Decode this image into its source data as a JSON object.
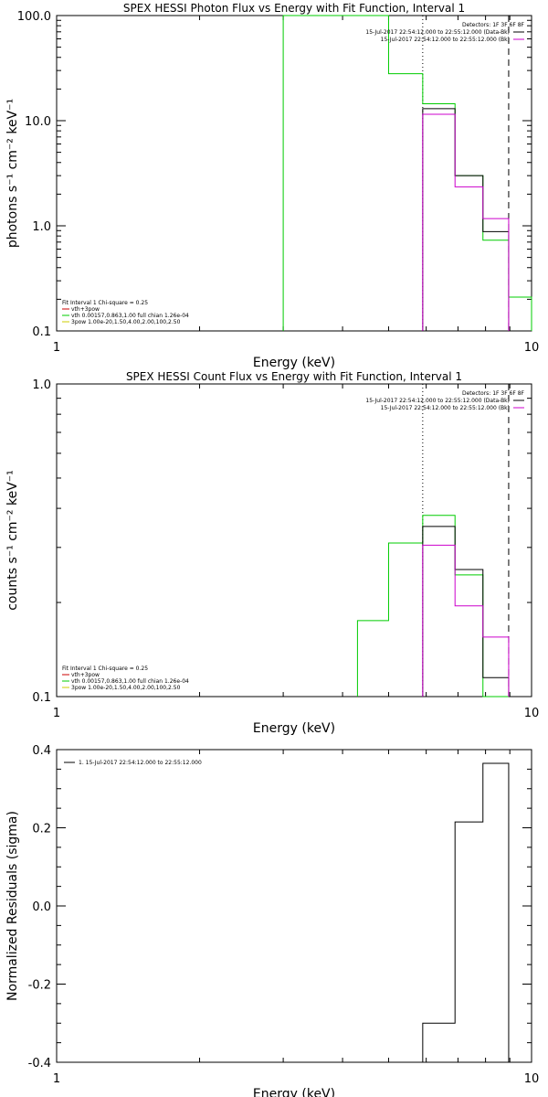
{
  "chart_data": [
    {
      "type": "line",
      "title": "SPEX HESSI Photon Flux vs Energy with Fit Function, Interval 1",
      "xlabel": "Energy (keV)",
      "ylabel": "photons s⁻¹ cm⁻² keV⁻¹",
      "xscale": "log",
      "yscale": "log",
      "xlim": [
        1,
        10
      ],
      "ylim": [
        0.1,
        100
      ],
      "xticks": [
        "1",
        "10"
      ],
      "yticks": [
        "100.0",
        "10.0",
        "1.0",
        "0.1"
      ],
      "vlines": [
        {
          "x": 5.9,
          "style": "dotted"
        },
        {
          "x": 8.95,
          "style": "dashed"
        }
      ],
      "legend_top_right": [
        {
          "text": "Detectors: 1F 3F 6F 8F",
          "color": ""
        },
        {
          "text": "15-Jul-2017 22:54:12.000 to 22:55:12.000 (Data-Bk)",
          "color": "#000000"
        },
        {
          "text": "15-Jul-2017 22:54:12.000 to 22:55:12.000 (Bk)",
          "color": "#cc00cc"
        }
      ],
      "legend_bottom_left": [
        {
          "text": "Fit Interval 1    Chi-square = 0.25",
          "color": ""
        },
        {
          "text": "vth+3pow",
          "color": "#cc0000"
        },
        {
          "text": "vth 0.00157,0.863,1.00   full chian 1.26e-04",
          "color": "#00cc00"
        },
        {
          "text": "3pow 1.00e-20,1.50,4.00,2.00,100,2.50",
          "color": "#cccc00"
        }
      ],
      "series": [
        {
          "color": "#00cc00",
          "edges": [
            3.0,
            5.0,
            5.9,
            6.9,
            7.9,
            8.95,
            10.0
          ],
          "values": [
            100,
            28,
            14.5,
            3.0,
            0.73,
            0.21
          ]
        },
        {
          "color": "#000000",
          "edges": [
            5.9,
            6.9,
            7.9,
            8.95
          ],
          "values": [
            13,
            3.0,
            0.88
          ]
        },
        {
          "color": "#cc00cc",
          "edges": [
            5.9,
            6.9,
            7.9,
            8.95
          ],
          "values": [
            11.5,
            2.35,
            1.17
          ]
        }
      ]
    },
    {
      "type": "line",
      "title": "SPEX HESSI Count Flux vs Energy with Fit Function, Interval 1",
      "xlabel": "Energy (keV)",
      "ylabel": "counts s⁻¹ cm⁻² keV⁻¹",
      "xscale": "log",
      "yscale": "log",
      "xlim": [
        1,
        10
      ],
      "ylim": [
        0.1,
        1.0
      ],
      "xticks": [
        "1",
        "10"
      ],
      "yticks": [
        "1.0",
        "0.1"
      ],
      "vlines": [
        {
          "x": 5.9,
          "style": "dotted"
        },
        {
          "x": 8.95,
          "style": "dashed"
        }
      ],
      "legend_top_right": [
        {
          "text": "Detectors: 1F 3F 6F 8F",
          "color": ""
        },
        {
          "text": "15-Jul-2017 22:54:12.000 to 22:55:12.000 (Data-Bk)",
          "color": "#000000"
        },
        {
          "text": "15-Jul-2017 22:54:12.000 to 22:55:12.000 (Bk)",
          "color": "#cc00cc"
        }
      ],
      "legend_bottom_left": [
        {
          "text": "Fit Interval 1    Chi-square = 0.25",
          "color": ""
        },
        {
          "text": "vth+3pow",
          "color": "#cc0000"
        },
        {
          "text": "vth 0.00157,0.863,1.00   full chian 1.26e-04",
          "color": "#00cc00"
        },
        {
          "text": "3pow 1.00e-20,1.50,4.00,2.00,100,2.50",
          "color": "#cccc00"
        }
      ],
      "series": [
        {
          "color": "#00cc00",
          "edges": [
            4.3,
            5.0,
            5.9,
            6.9,
            7.9,
            8.95
          ],
          "values": [
            0.175,
            0.31,
            0.38,
            0.245,
            0.1
          ]
        },
        {
          "color": "#000000",
          "edges": [
            5.9,
            6.9,
            7.9,
            8.95
          ],
          "values": [
            0.35,
            0.255,
            0.115
          ]
        },
        {
          "color": "#cc00cc",
          "edges": [
            5.9,
            6.9,
            7.9,
            8.95
          ],
          "values": [
            0.305,
            0.195,
            0.155
          ]
        }
      ]
    },
    {
      "type": "line",
      "title": "",
      "xlabel": "Energy (keV)",
      "ylabel": "Normalized Residuals (sigma)",
      "xscale": "log",
      "yscale": "linear",
      "xlim": [
        1,
        10
      ],
      "ylim": [
        -0.4,
        0.4
      ],
      "xticks": [
        "1",
        "10"
      ],
      "yticks": [
        "0.4",
        "0.2",
        "0.0",
        "-0.2",
        "-0.4"
      ],
      "vlines": [],
      "legend_top_left": [
        {
          "text": "1. 15-Jul-2017 22:54:12.000 to 22:55:12.000",
          "color": "#000000"
        }
      ],
      "series": [
        {
          "color": "#000000",
          "edges": [
            5.9,
            6.9,
            7.9,
            8.95
          ],
          "values": [
            -0.3,
            0.215,
            0.365
          ]
        }
      ]
    }
  ]
}
